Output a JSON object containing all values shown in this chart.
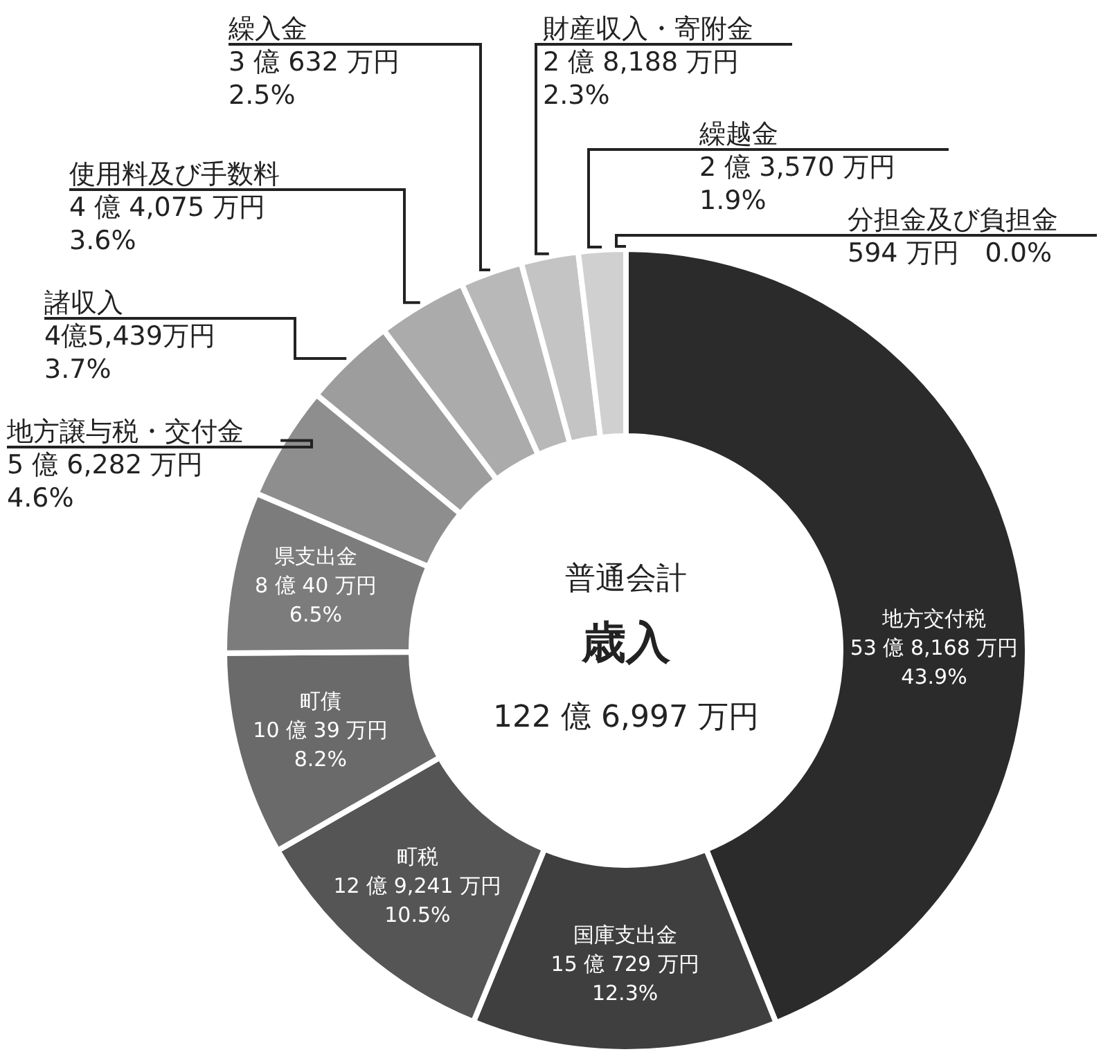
{
  "chart_data": {
    "type": "donut",
    "title": "歳入",
    "subtitle": "普通会計",
    "annotations": [
      "122 億 6,997 万円"
    ],
    "categories": [
      "地方交付税",
      "国庫支出金",
      "町税",
      "町債",
      "県支出金",
      "地方譲与税・交付金",
      "諸収入",
      "使用料及び手数料",
      "繰入金",
      "財産収入・寄附金",
      "繰越金",
      "分担金及び負担金"
    ],
    "values": [
      43.9,
      12.3,
      10.5,
      8.2,
      6.5,
      4.6,
      3.7,
      3.6,
      2.5,
      2.3,
      1.9,
      0.0
    ],
    "value_labels": [
      "53 億 8,168 万円\n43.9%",
      "15 億 729 万円\n12.3%",
      "12 億 9,241 万円\n10.5%",
      "10 億 39 万円\n8.2%",
      "8 億 40 万円\n6.5%",
      "5 億 6,282 万円\n4.6%",
      "4億5,439万円\n3.7%",
      "4 億 4,075 万円\n3.6%",
      "3 億 632 万円\n2.5%",
      "2 億 8,188 万円\n2.3%",
      "2 億 3,570 万円\n1.9%",
      "594 万円　0.0%"
    ],
    "colors": [
      "#2b2b2b",
      "#3f3f3f",
      "#555555",
      "#6a6a6a",
      "#7c7c7c",
      "#8e8e8e",
      "#9d9d9d",
      "#ababab",
      "#b8b8b8",
      "#c4c4c4",
      "#d0d0d0",
      "#dcdcdc"
    ],
    "legend": false
  }
}
